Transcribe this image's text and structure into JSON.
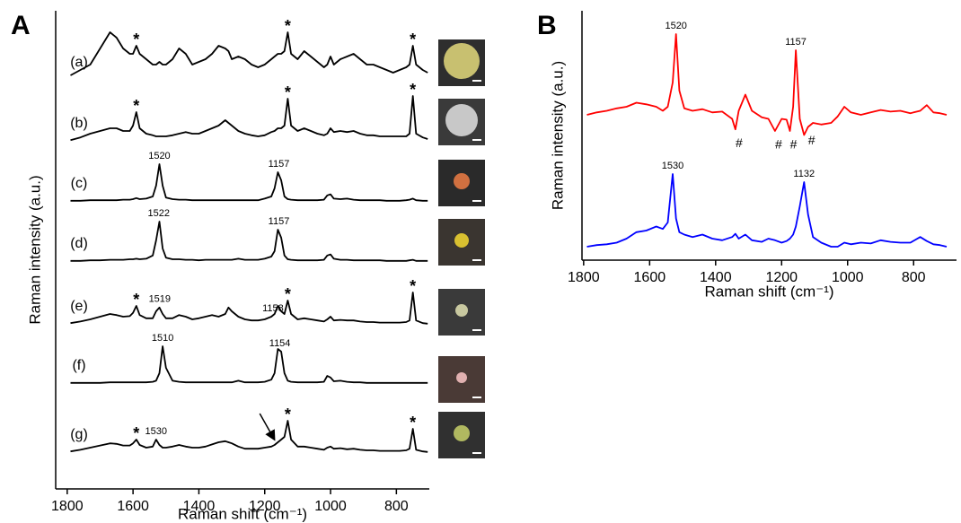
{
  "chart_data": [
    {
      "type": "line",
      "panel": "A",
      "xlabel": "Raman shift (cm⁻¹)",
      "ylabel": "Raman intensity (a.u.)",
      "xlim": [
        1835,
        700
      ],
      "xticks": [
        1800,
        1600,
        1400,
        1200,
        1000,
        800
      ],
      "color": "#000000",
      "asterisk": "*",
      "x": [
        1790,
        1760,
        1730,
        1700,
        1670,
        1650,
        1630,
        1610,
        1600,
        1590,
        1580,
        1560,
        1540,
        1530,
        1520,
        1510,
        1500,
        1480,
        1460,
        1440,
        1420,
        1400,
        1380,
        1360,
        1340,
        1320,
        1310,
        1300,
        1280,
        1260,
        1240,
        1220,
        1200,
        1180,
        1170,
        1160,
        1150,
        1140,
        1130,
        1120,
        1100,
        1080,
        1060,
        1040,
        1020,
        1010,
        1000,
        990,
        970,
        950,
        930,
        910,
        890,
        870,
        850,
        830,
        810,
        790,
        770,
        760,
        750,
        740,
        720,
        705
      ],
      "series": [
        {
          "name": "(a)",
          "asterisks": [
            1590,
            1130,
            750
          ],
          "peak_labels": [],
          "values": [
            1,
            2,
            3,
            6,
            9,
            8,
            6,
            5,
            5,
            6.5,
            5,
            4,
            3,
            3,
            3.5,
            3,
            3,
            4,
            6,
            5,
            3,
            3.5,
            4,
            5,
            6.5,
            6,
            5.5,
            4,
            4.5,
            4,
            3,
            2.5,
            3,
            4,
            4.5,
            5,
            5,
            5.5,
            9,
            5,
            4,
            5.5,
            4.5,
            3.5,
            2.5,
            3,
            4.5,
            3,
            4,
            4.5,
            5,
            4,
            3,
            3,
            2.5,
            2,
            1.5,
            2,
            2.5,
            3,
            6.5,
            3,
            2,
            1.5
          ]
        },
        {
          "name": "(b)",
          "asterisks": [
            1590,
            1130,
            750
          ],
          "peak_labels": [],
          "values": [
            0.3,
            0.8,
            1.5,
            2,
            2.5,
            2.5,
            2,
            2,
            3,
            5.5,
            2.5,
            1.5,
            1.2,
            1,
            1,
            1,
            1,
            1.2,
            1.5,
            1.8,
            1.5,
            1.5,
            2,
            2.5,
            3,
            4,
            3.5,
            3,
            2,
            1.5,
            1.2,
            1,
            1.2,
            1.8,
            2,
            2.5,
            2.5,
            3,
            8,
            3,
            2,
            2.5,
            2,
            1.5,
            1.2,
            1.5,
            2.5,
            1.8,
            2,
            1.8,
            2,
            1.5,
            1.2,
            1.2,
            1,
            1,
            1,
            1,
            1,
            1.5,
            8.5,
            1.5,
            0.8,
            0.5
          ]
        },
        {
          "name": "(c)",
          "asterisks": [],
          "peak_labels": [
            {
              "x": 1520,
              "label": "1520"
            },
            {
              "x": 1157,
              "label": "1157"
            }
          ],
          "values": [
            0.2,
            0.2,
            0.3,
            0.3,
            0.3,
            0.3,
            0.4,
            0.4,
            0.5,
            0.7,
            0.5,
            0.6,
            1,
            3,
            7,
            3,
            0.8,
            0.5,
            0.4,
            0.4,
            0.3,
            0.3,
            0.3,
            0.3,
            0.3,
            0.3,
            0.3,
            0.3,
            0.3,
            0.3,
            0.3,
            0.3,
            0.6,
            1,
            2.5,
            5.5,
            4,
            1,
            0.5,
            0.4,
            0.3,
            0.3,
            0.3,
            0.3,
            0.4,
            1.2,
            1.4,
            0.6,
            0.5,
            0.6,
            0.4,
            0.3,
            0.3,
            0.3,
            0.3,
            0.2,
            0.2,
            0.2,
            0.3,
            0.4,
            0.6,
            0.3,
            0.2,
            0.2
          ]
        },
        {
          "name": "(d)",
          "asterisks": [],
          "peak_labels": [
            {
              "x": 1522,
              "label": "1522"
            },
            {
              "x": 1157,
              "label": "1157"
            }
          ],
          "values": [
            0.2,
            0.2,
            0.3,
            0.3,
            0.4,
            0.4,
            0.4,
            0.5,
            0.5,
            0.6,
            0.5,
            0.6,
            1.2,
            4,
            7.5,
            2.5,
            0.8,
            0.5,
            0.5,
            0.4,
            0.4,
            0.3,
            0.4,
            0.4,
            0.4,
            0.4,
            0.4,
            0.4,
            0.6,
            0.4,
            0.4,
            0.4,
            0.6,
            1,
            2,
            6,
            4.5,
            1.2,
            0.5,
            0.4,
            0.3,
            0.3,
            0.3,
            0.3,
            0.4,
            1.2,
            1.4,
            0.6,
            0.4,
            0.4,
            0.3,
            0.3,
            0.3,
            0.3,
            0.3,
            0.2,
            0.2,
            0.2,
            0.2,
            0.3,
            0.4,
            0.2,
            0.2,
            0.2
          ]
        },
        {
          "name": "(e)",
          "asterisks": [
            1590,
            1130,
            750
          ],
          "peak_labels": [
            {
              "x": 1519,
              "label": "1519"
            },
            {
              "x": 1175,
              "label": "1158"
            }
          ],
          "values": [
            0.3,
            0.6,
            1,
            1.5,
            2,
            1.8,
            1.5,
            1.6,
            2.2,
            3.5,
            1.8,
            1.2,
            1.2,
            2.5,
            3.2,
            2,
            1.2,
            1.2,
            1.8,
            1.5,
            1,
            1.2,
            1.5,
            1.8,
            1.5,
            2,
            3.2,
            2.5,
            1.5,
            1,
            0.8,
            0.8,
            1,
            1.5,
            2,
            3.5,
            2.5,
            2,
            4.5,
            2,
            1,
            1.2,
            1,
            0.8,
            0.6,
            1,
            1.5,
            0.8,
            0.9,
            0.8,
            0.8,
            0.6,
            0.5,
            0.5,
            0.4,
            0.4,
            0.4,
            0.4,
            0.5,
            0.8,
            6,
            0.8,
            0.3,
            0.2
          ]
        },
        {
          "name": "(f)",
          "asterisks": [],
          "peak_labels": [
            {
              "x": 1510,
              "label": "1510"
            },
            {
              "x": 1154,
              "label": "1154"
            }
          ],
          "values": [
            0.2,
            0.2,
            0.2,
            0.2,
            0.3,
            0.3,
            0.3,
            0.3,
            0.3,
            0.3,
            0.3,
            0.3,
            0.4,
            0.6,
            2,
            7,
            3,
            0.6,
            0.4,
            0.3,
            0.3,
            0.3,
            0.3,
            0.3,
            0.3,
            0.3,
            0.3,
            0.3,
            0.6,
            0.3,
            0.3,
            0.3,
            0.4,
            0.8,
            2,
            6.5,
            6,
            2,
            0.6,
            0.4,
            0.3,
            0.3,
            0.3,
            0.3,
            0.4,
            1.5,
            1.2,
            0.5,
            0.6,
            0.4,
            0.3,
            0.3,
            0.2,
            0.2,
            0.2,
            0.2,
            0.2,
            0.2,
            0.2,
            0.2,
            0.2,
            0.2,
            0.2,
            0.2
          ]
        },
        {
          "name": "(g)",
          "asterisks": [
            1590,
            1130,
            750
          ],
          "peak_labels": [
            {
              "x": 1530,
              "label": "1530"
            }
          ],
          "values": [
            0.3,
            0.6,
            1,
            1.4,
            1.8,
            1.7,
            1.4,
            1.4,
            1.8,
            2.5,
            1.5,
            1,
            1.2,
            2.5,
            1.5,
            1,
            1,
            1.2,
            1.5,
            1.2,
            1,
            1,
            1.2,
            1.6,
            2,
            2.2,
            2,
            1.8,
            1.2,
            0.8,
            0.8,
            0.8,
            1,
            1.2,
            1.5,
            2,
            2.5,
            3,
            6,
            2.5,
            1.2,
            1.2,
            1,
            0.8,
            0.6,
            1,
            1.2,
            0.8,
            0.9,
            0.7,
            0.8,
            0.6,
            0.5,
            0.5,
            0.4,
            0.4,
            0.4,
            0.4,
            0.5,
            0.8,
            4.5,
            0.6,
            0.3,
            0.2
          ]
        }
      ]
    },
    {
      "type": "line",
      "panel": "B",
      "xlabel": "Raman shift (cm⁻¹)",
      "ylabel": "Raman intensity (a.u.)",
      "xlim": [
        1805,
        670
      ],
      "xticks": [
        1800,
        1600,
        1400,
        1200,
        1000,
        800
      ],
      "hash": "#",
      "x": [
        1790,
        1760,
        1730,
        1700,
        1670,
        1640,
        1610,
        1580,
        1560,
        1545,
        1530,
        1520,
        1510,
        1495,
        1470,
        1440,
        1410,
        1380,
        1350,
        1340,
        1330,
        1310,
        1290,
        1260,
        1240,
        1220,
        1200,
        1185,
        1175,
        1165,
        1157,
        1145,
        1132,
        1120,
        1105,
        1080,
        1050,
        1030,
        1010,
        990,
        960,
        930,
        900,
        870,
        840,
        810,
        780,
        760,
        740,
        720,
        700
      ],
      "series": [
        {
          "color": "#ff0000",
          "peak_labels": [
            {
              "x": 1520,
              "label": "1520"
            },
            {
              "x": 1157,
              "label": "1157"
            }
          ],
          "hashes": [
            1340,
            1220,
            1175,
            1120
          ],
          "values": [
            0,
            0.3,
            0.5,
            0.8,
            1,
            1.5,
            1.3,
            1,
            0.5,
            1,
            4,
            10,
            3,
            0.8,
            0.5,
            0.7,
            0.3,
            0.4,
            -0.5,
            -1.8,
            0.5,
            2.5,
            0.5,
            -0.3,
            -0.5,
            -2,
            -0.5,
            -0.6,
            -2,
            1,
            8,
            -0.5,
            -2.5,
            -1.5,
            -1,
            -1.2,
            -1,
            -0.2,
            1,
            0.3,
            0,
            0.3,
            0.6,
            0.4,
            0.5,
            0.2,
            0.5,
            1.2,
            0.3,
            0.2,
            0
          ]
        },
        {
          "color": "#0000ff",
          "peak_labels": [
            {
              "x": 1530,
              "label": "1530"
            },
            {
              "x": 1132,
              "label": "1132"
            }
          ],
          "hashes": [],
          "values": [
            0,
            0.2,
            0.3,
            0.5,
            1,
            1.8,
            2,
            2.5,
            2.2,
            3,
            9,
            3.5,
            1.8,
            1.5,
            1.2,
            1.5,
            1,
            0.8,
            1.2,
            1.6,
            1,
            1.5,
            0.8,
            0.6,
            1,
            0.8,
            0.5,
            0.7,
            1,
            1.5,
            2.5,
            5,
            8,
            4,
            1.2,
            0.5,
            0,
            0,
            0.5,
            0.3,
            0.5,
            0.4,
            0.8,
            0.6,
            0.5,
            0.5,
            1.2,
            0.7,
            0.3,
            0.2,
            0
          ]
        }
      ]
    }
  ]
}
